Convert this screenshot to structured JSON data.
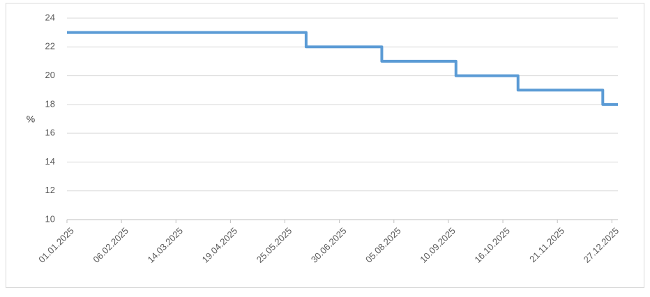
{
  "chart_data": {
    "type": "line",
    "step": "post",
    "y_label": "%",
    "x": [
      "01.01.2025",
      "08.06.2025",
      "28.07.2025",
      "15.09.2025",
      "26.10.2025",
      "21.12.2025",
      "31.12.2025"
    ],
    "series": [
      {
        "color": "#5b9bd5",
        "values": [
          23,
          22,
          21,
          20,
          19,
          18,
          18
        ]
      }
    ],
    "xlim": [
      "01.01.2025",
      "31.12.2025"
    ],
    "xticks": [
      "01.01.2025",
      "06.02.2025",
      "14.03.2025",
      "19.04.2025",
      "25.05.2025",
      "30.06.2025",
      "05.08.2025",
      "10.09.2025",
      "16.10.2025",
      "21.11.2025",
      "27.12.2025"
    ],
    "ylim": [
      10,
      24
    ],
    "yticks": [
      10,
      12,
      14,
      16,
      18,
      20,
      22,
      24
    ],
    "grid": true
  }
}
